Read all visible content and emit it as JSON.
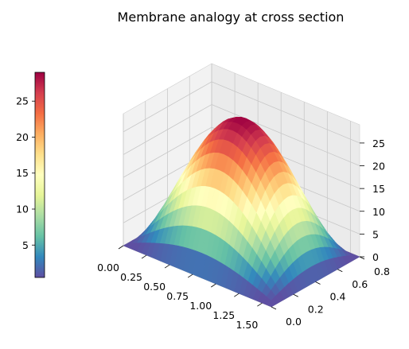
{
  "chart_data": {
    "type": "surface3d",
    "title": "Membrane analogy at cross section",
    "colormap": "Spectral_r",
    "x": {
      "label": "",
      "range": [
        0,
        1.6
      ],
      "ticks": [
        "0.00",
        "0.25",
        "0.50",
        "0.75",
        "1.00",
        "1.25",
        "1.50"
      ]
    },
    "y": {
      "label": "",
      "range": [
        0,
        0.8
      ],
      "ticks": [
        "0.0",
        "0.2",
        "0.4",
        "0.6",
        "0.8"
      ]
    },
    "z": {
      "label": "",
      "range": [
        0,
        29
      ],
      "ticks": [
        "0",
        "5",
        "10",
        "15",
        "20",
        "25"
      ]
    },
    "surface": {
      "function": "membrane_deflection",
      "peak_value": 29,
      "peak_at": [
        0.8,
        0.4
      ],
      "boundary_value": 0
    },
    "colorbar": {
      "range": [
        0.5,
        29
      ],
      "ticks": [
        "5",
        "10",
        "15",
        "20",
        "25"
      ],
      "placement": "left"
    },
    "grid": true
  }
}
